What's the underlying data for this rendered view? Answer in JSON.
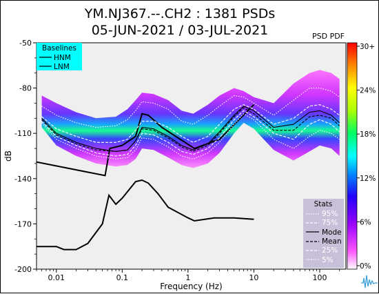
{
  "title": {
    "line1": "YM.NJ367.--.CH2 : 1381 PSDs",
    "line2": "05-JUN-2021 / 03-JUL-2021"
  },
  "colorbar": {
    "title": "PSD PDF",
    "ticks": [
      "30+",
      "24%",
      "18%",
      "12%",
      "6%",
      "0%"
    ]
  },
  "baselines": {
    "title": "Baselines",
    "items": [
      "HNM",
      "LNM"
    ],
    "background": "#00ffff"
  },
  "stats": {
    "title": "Stats",
    "items": [
      "95%",
      "75%",
      "Mode",
      "Mean",
      "25%",
      "5%"
    ],
    "background": "#c8c0d8"
  },
  "chart_data": {
    "type": "line",
    "xlabel": "Frequency (Hz)",
    "ylabel": "dB",
    "xscale": "log",
    "xlim": [
      0.005,
      250
    ],
    "ylim": [
      -200,
      -50
    ],
    "xticks": [
      "0.01",
      "0.1",
      "1",
      "10",
      "100"
    ],
    "yticks": [
      "-50",
      "-80",
      "-110",
      "-140",
      "-170",
      "-200"
    ],
    "series": [
      {
        "name": "HNM",
        "style": "solid",
        "color": "#000000",
        "x": [
          0.005,
          0.055,
          0.065,
          0.1,
          0.16,
          0.2,
          0.25,
          0.4,
          1.25,
          3.0,
          10
        ],
        "y": [
          -129,
          -138,
          -120,
          -118,
          -112,
          -97,
          -98,
          -106,
          -120,
          -114,
          -91
        ]
      },
      {
        "name": "LNM",
        "style": "solid",
        "color": "#000000",
        "x": [
          0.005,
          0.01,
          0.013,
          0.02,
          0.03,
          0.05,
          0.063,
          0.08,
          0.1,
          0.16,
          0.2,
          0.25,
          0.35,
          0.5,
          1.0,
          1.25,
          2.5,
          5,
          10
        ],
        "y": [
          -185,
          -185,
          -187,
          -187,
          -183,
          -170,
          -151,
          -157,
          -153,
          -142,
          -141,
          -143,
          -150,
          -159,
          -166,
          -168,
          -166,
          -166,
          -167
        ]
      },
      {
        "name": "95%",
        "style": "dotted",
        "color": "#ffffff",
        "x": [
          0.006,
          0.01,
          0.02,
          0.04,
          0.08,
          0.12,
          0.16,
          0.2,
          0.3,
          0.5,
          0.8,
          1.2,
          2,
          3,
          5,
          7,
          10,
          20,
          40,
          70,
          100,
          150,
          200
        ],
        "y": [
          -92,
          -98,
          -103,
          -106,
          -105,
          -101,
          -95,
          -89,
          -90,
          -94,
          -102,
          -104,
          -98,
          -92,
          -85,
          -86,
          -90,
          -98,
          -88,
          -80,
          -80,
          -82,
          -86
        ]
      },
      {
        "name": "75%",
        "style": "dashed",
        "color": "#ffffff",
        "x": [
          0.006,
          0.01,
          0.02,
          0.04,
          0.08,
          0.12,
          0.16,
          0.2,
          0.3,
          0.5,
          0.8,
          1.2,
          2,
          3,
          5,
          7,
          10,
          20,
          40,
          70,
          100,
          150,
          200
        ],
        "y": [
          -99,
          -107,
          -112,
          -116,
          -116,
          -114,
          -108,
          -102,
          -102,
          -106,
          -112,
          -116,
          -112,
          -104,
          -94,
          -91,
          -94,
          -104,
          -100,
          -92,
          -91,
          -94,
          -98
        ]
      },
      {
        "name": "Mode",
        "style": "solid",
        "color": "#000000",
        "x": [
          0.006,
          0.01,
          0.02,
          0.04,
          0.08,
          0.12,
          0.16,
          0.2,
          0.3,
          0.5,
          0.8,
          1.2,
          2,
          3,
          5,
          7,
          10,
          20,
          40,
          70,
          100,
          150,
          200
        ],
        "y": [
          -100,
          -110,
          -116,
          -120,
          -122,
          -121,
          -115,
          -106,
          -107,
          -112,
          -118,
          -121,
          -117,
          -109,
          -98,
          -92,
          -95,
          -106,
          -104,
          -96,
          -95,
          -98,
          -103
        ]
      },
      {
        "name": "Mean",
        "style": "dashed",
        "color": "#000000",
        "x": [
          0.006,
          0.01,
          0.02,
          0.04,
          0.08,
          0.12,
          0.16,
          0.2,
          0.3,
          0.5,
          0.8,
          1.2,
          2,
          3,
          5,
          7,
          10,
          20,
          40,
          70,
          100,
          150,
          200
        ],
        "y": [
          -101,
          -111,
          -117,
          -121,
          -122,
          -121,
          -115,
          -107,
          -108,
          -113,
          -119,
          -122,
          -118,
          -110,
          -99,
          -93,
          -97,
          -108,
          -108,
          -99,
          -98,
          -100,
          -105
        ]
      },
      {
        "name": "25%",
        "style": "dashed",
        "color": "#ffffff",
        "x": [
          0.006,
          0.01,
          0.02,
          0.04,
          0.08,
          0.12,
          0.16,
          0.2,
          0.3,
          0.5,
          0.8,
          1.2,
          2,
          3,
          5,
          7,
          10,
          20,
          40,
          70,
          100,
          150,
          200
        ],
        "y": [
          -102,
          -112,
          -118,
          -123,
          -125,
          -124,
          -118,
          -110,
          -111,
          -116,
          -122,
          -124,
          -120,
          -113,
          -101,
          -95,
          -99,
          -110,
          -114,
          -104,
          -101,
          -104,
          -109
        ]
      },
      {
        "name": "5%",
        "style": "dotted",
        "color": "#ffffff",
        "x": [
          0.006,
          0.01,
          0.02,
          0.04,
          0.08,
          0.12,
          0.16,
          0.2,
          0.3,
          0.5,
          0.8,
          1.2,
          2,
          3,
          5,
          7,
          10,
          20,
          40,
          70,
          100,
          150,
          200
        ],
        "y": [
          -103,
          -114,
          -120,
          -125,
          -127,
          -126,
          -121,
          -113,
          -114,
          -119,
          -125,
          -127,
          -123,
          -116,
          -104,
          -97,
          -101,
          -114,
          -120,
          -112,
          -108,
          -110,
          -114
        ]
      }
    ],
    "pdf_band": {
      "x": [
        0.006,
        0.01,
        0.02,
        0.04,
        0.08,
        0.12,
        0.16,
        0.2,
        0.3,
        0.5,
        0.8,
        1.2,
        2,
        3,
        5,
        7,
        10,
        20,
        40,
        70,
        100,
        150,
        200
      ],
      "upper": [
        -85,
        -90,
        -96,
        -100,
        -99,
        -94,
        -88,
        -83,
        -84,
        -88,
        -95,
        -97,
        -91,
        -85,
        -80,
        -82,
        -86,
        -90,
        -77,
        -70,
        -68,
        -70,
        -74
      ],
      "lower": [
        -106,
        -118,
        -125,
        -130,
        -132,
        -131,
        -127,
        -120,
        -121,
        -126,
        -131,
        -133,
        -130,
        -123,
        -110,
        -103,
        -107,
        -121,
        -128,
        -122,
        -118,
        -120,
        -125
      ]
    }
  }
}
